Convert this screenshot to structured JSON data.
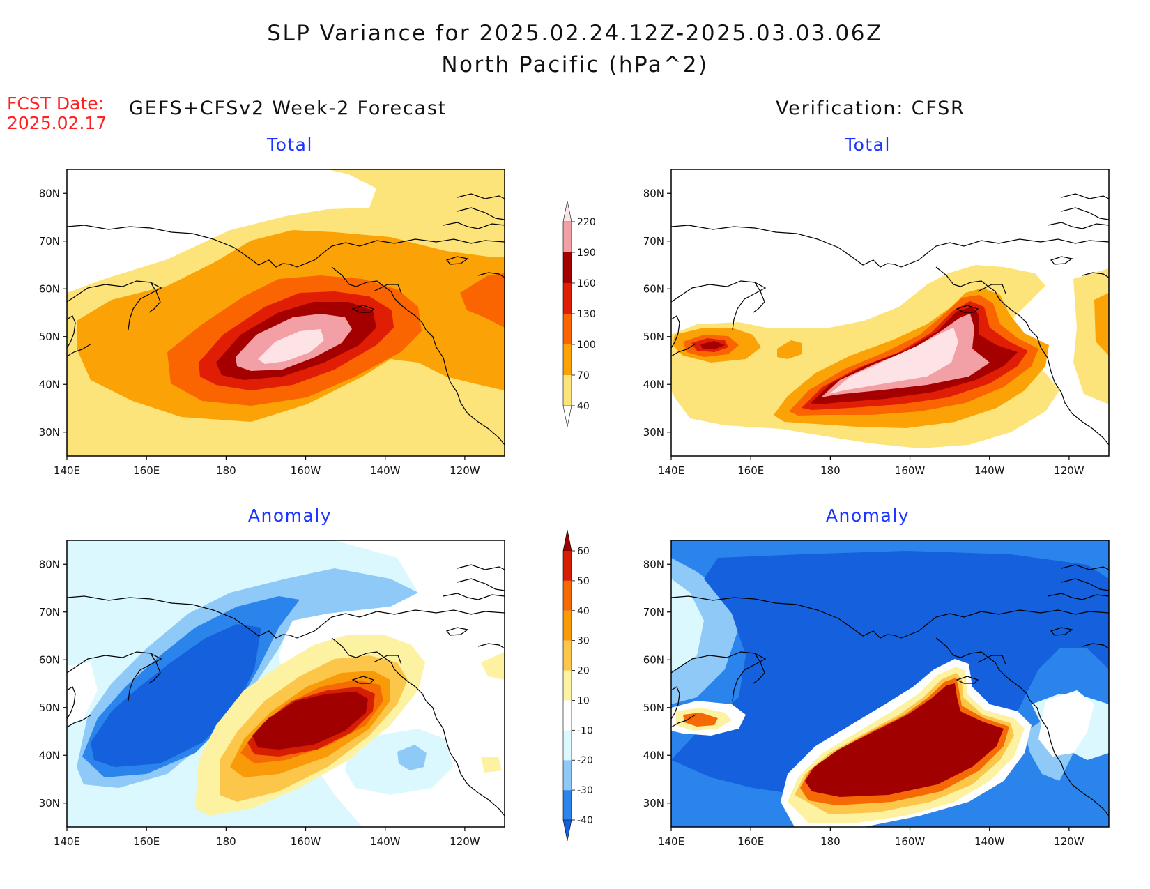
{
  "title": {
    "line1": "SLP Variance for 2025.02.24.12Z-2025.03.03.06Z",
    "line2": "North Pacific (hPa^2)"
  },
  "forecast_date": {
    "label": "FCST Date:",
    "value": "2025.02.17"
  },
  "columns": {
    "left": "GEFS+CFSv2 Week-2 Forecast",
    "right": "Verification: CFSR"
  },
  "panels": [
    {
      "id": "fcst-total",
      "subtitle": "Total"
    },
    {
      "id": "verif-total",
      "subtitle": "Total"
    },
    {
      "id": "fcst-anomaly",
      "subtitle": "Anomaly"
    },
    {
      "id": "verif-anomaly",
      "subtitle": "Anomaly"
    }
  ],
  "axes": {
    "x_ticks": [
      "140E",
      "160E",
      "180",
      "160W",
      "140W",
      "120W"
    ],
    "y_ticks": [
      "30N",
      "40N",
      "50N",
      "60N",
      "70N",
      "80N"
    ],
    "lon_range": [
      140,
      250
    ],
    "lat_range": [
      25,
      85
    ]
  },
  "colorbars": {
    "total": {
      "levels": [
        "40",
        "70",
        "100",
        "130",
        "160",
        "190",
        "220"
      ],
      "colors": [
        "#ffffff",
        "#fde47a",
        "#fba306",
        "#fa6502",
        "#e01d05",
        "#a50000",
        "#f2a0a6",
        "#fde3e5"
      ]
    },
    "anomaly": {
      "levels": [
        "-40",
        "-30",
        "-20",
        "-10",
        "10",
        "20",
        "30",
        "40",
        "50",
        "60"
      ],
      "colors": [
        "#1560dc",
        "#2a84ec",
        "#8ec9f8",
        "#dcf8ff",
        "#ffffff",
        "#fdf2a2",
        "#fbc64a",
        "#f99a08",
        "#f56a04",
        "#d61e02",
        "#a00000"
      ]
    }
  }
}
